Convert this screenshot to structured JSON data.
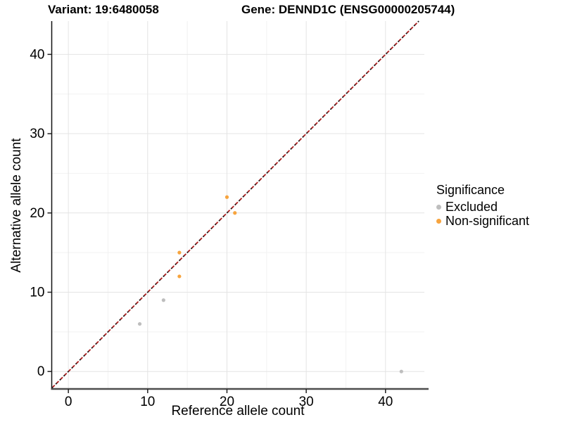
{
  "header": {
    "variant_title": "Variant: 19:6480058",
    "gene_title": "Gene: DENND1C (ENSG00000205744)"
  },
  "chart_data": {
    "type": "scatter",
    "xlabel": "Reference allele count",
    "ylabel": "Alternative allele count",
    "xlim": [
      -2.1,
      44.9
    ],
    "ylim": [
      -2.2,
      44.2
    ],
    "xticks": [
      0,
      10,
      20,
      30,
      40
    ],
    "yticks": [
      0,
      10,
      20,
      30,
      40
    ],
    "xminor": [
      5,
      15,
      25,
      35
    ],
    "yminor": [
      5,
      15,
      25,
      35
    ],
    "grid": "major-and-minor",
    "legend_position": "right",
    "identity_line": {
      "equation": "y = x",
      "style": "dashed",
      "colors": [
        "#1a1a1a",
        "#b22222"
      ],
      "from": -2.1,
      "to": 44.2
    },
    "series": [
      {
        "name": "Excluded",
        "color": "#bebebe",
        "points": [
          [
            9,
            6
          ],
          [
            12,
            9
          ],
          [
            42,
            0
          ]
        ]
      },
      {
        "name": "Non-significant",
        "color": "#f7a43e",
        "points": [
          [
            14,
            12
          ],
          [
            14,
            15
          ],
          [
            21,
            20
          ],
          [
            20,
            22
          ]
        ]
      }
    ],
    "legend": {
      "title": "Significance",
      "items": [
        "Excluded",
        "Non-significant"
      ]
    },
    "colors": {
      "grid_major": "#e4e4e4",
      "grid_minor": "#f2f2f2",
      "axis_line_left": "#111111",
      "axis_line_bottom": "#4d4d4d",
      "tick": "#222222",
      "text": "#000000",
      "background": "#ffffff"
    }
  }
}
